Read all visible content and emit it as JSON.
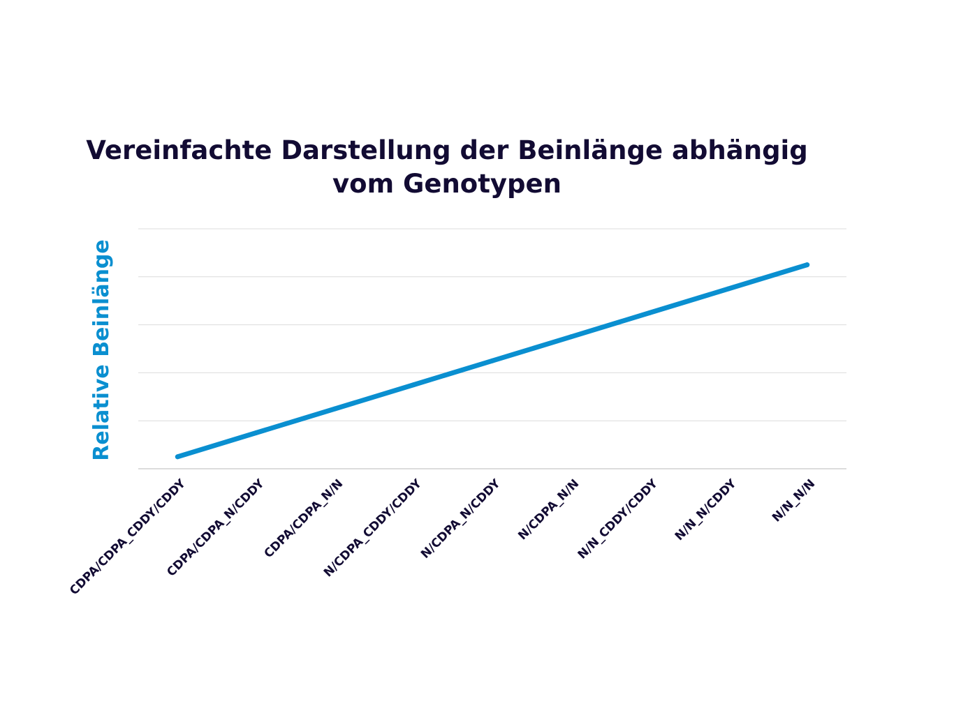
{
  "chart_data": {
    "type": "line",
    "title_lines": [
      "Vereinfachte Darstellung der Beinlänge abhängig",
      "vom Genotypen"
    ],
    "ylabel": "Relative Beinlänge",
    "xlabel": "",
    "categories": [
      "CDPA/CDPA_CDDY/CDDY",
      "CDPA/CDPA_N/CDDY",
      "CDPA/CDPA_N/N",
      "N/CDPA_CDDY/CDDY",
      "N/CDPA_N/CDDY",
      "N/CDPA_N/N",
      "N/N_CDDY/CDDY",
      "N/N_N/CDDY",
      "N/N_N/N"
    ],
    "series": [
      {
        "values": [
          1,
          2,
          3,
          4,
          5,
          6,
          7,
          8,
          9
        ],
        "color": "#0a8fd0"
      }
    ],
    "ylim": [
      0.5,
      10.5
    ],
    "y_gridlines": 6,
    "y_tick_labels": false,
    "grid": true,
    "legend": "none"
  }
}
